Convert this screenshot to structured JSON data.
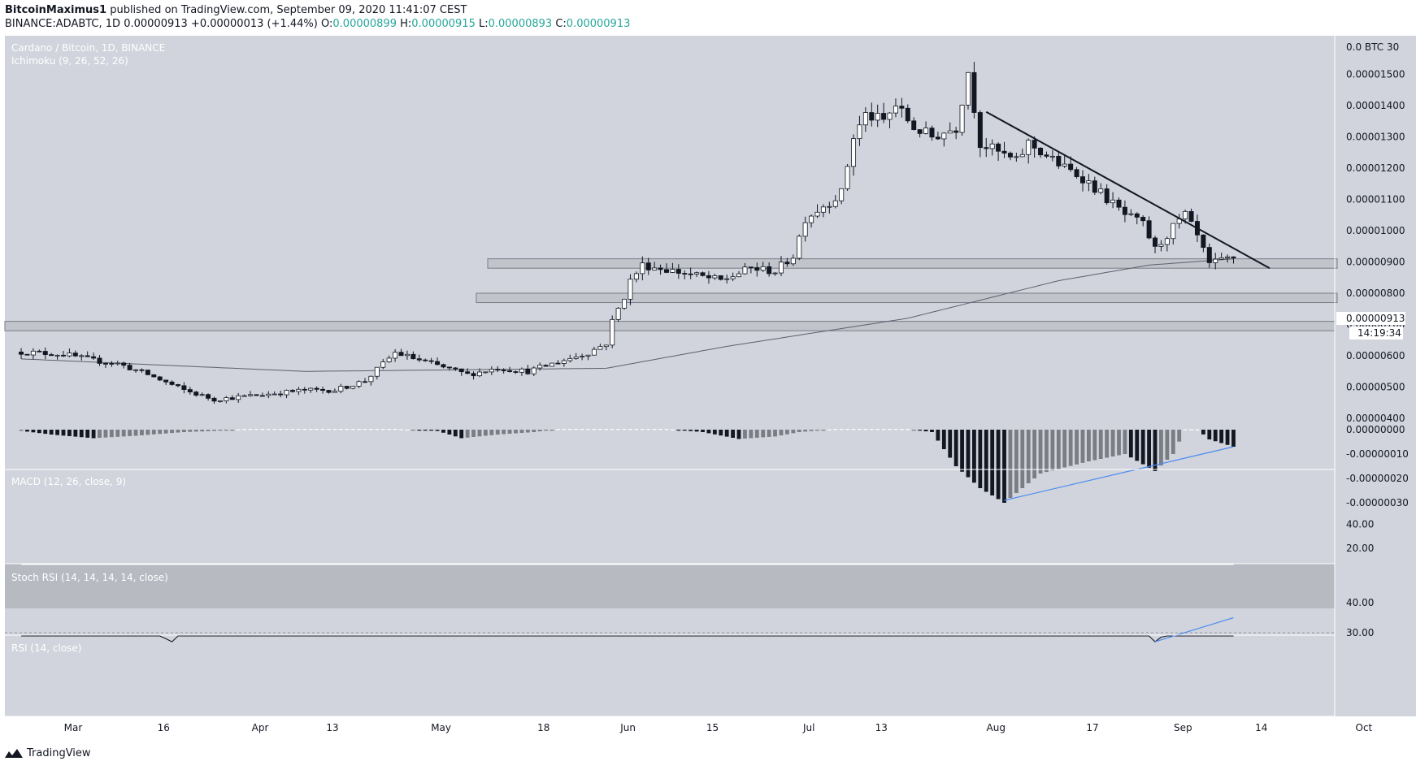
{
  "header": {
    "author": "BitcoinMaximus1",
    "published_text": "published on TradingView.com, September 09, 2020 11:41:07 CEST",
    "symbol": "BINANCE:ADABTC, 1D",
    "last": "0.00000913",
    "change": "+0.00000013 (+1.44%)",
    "o_label": "O:",
    "o_value": "0.00000899",
    "h_label": "H:",
    "h_value": "0.00000915",
    "l_label": "L:",
    "l_value": "0.00000893",
    "c_label": "C:",
    "c_value": "0.00000913"
  },
  "legend": {
    "title": "Cardano / Bitcoin, 1D, BINANCE",
    "indicator": "Ichimoku (9, 26, 52, 26)",
    "macd": "MACD (12, 26, close, 9)",
    "stoch": "Stoch RSI (14, 14, 14, 14, close)",
    "rsi": "RSI (14, close)"
  },
  "footer": {
    "brand": "TradingView"
  },
  "chart_data": {
    "type": "candlestick",
    "instrument": "Cardano / Bitcoin, 1D, BINANCE",
    "price_axis": {
      "unit_label": "0.0 BTC 30",
      "ticks": [
        "0.00001500",
        "0.00001400",
        "0.00001300",
        "0.00001200",
        "0.00001100",
        "0.00001000",
        "0.00000900",
        "0.00000800",
        "0.00000700",
        "0.00000600",
        "0.00000500",
        "0.00000400"
      ],
      "tick_values": [
        1.5e-05,
        1.4e-05,
        1.3e-05,
        1.2e-05,
        1.1e-05,
        1e-05,
        9e-06,
        8e-06,
        7e-06,
        6e-06,
        5e-06,
        4e-06
      ],
      "current_price_label": "0.00000913",
      "current_price": 9.13e-06,
      "countdown_label": "14:19:34"
    },
    "time_axis": {
      "labels": [
        "Mar",
        "16",
        "Apr",
        "13",
        "May",
        "18",
        "Jun",
        "15",
        "Jul",
        "13",
        "Aug",
        "17",
        "Sep",
        "14",
        "Oct"
      ],
      "label_days": [
        0,
        15,
        31,
        43,
        61,
        78,
        92,
        106,
        122,
        134,
        153,
        169,
        184,
        197,
        214
      ]
    },
    "price_series": {
      "start": "2020-02-22",
      "days": 201,
      "anchor_values": [
        [
          -7,
          6.12e-06
        ],
        [
          0,
          6.05e-06
        ],
        [
          5,
          5.85e-06
        ],
        [
          9,
          5.75e-06
        ],
        [
          14,
          5.4e-06
        ],
        [
          20,
          4.9e-06
        ],
        [
          25,
          4.6e-06
        ],
        [
          30,
          4.7e-06
        ],
        [
          35,
          4.8e-06
        ],
        [
          40,
          4.9e-06
        ],
        [
          45,
          4.9e-06
        ],
        [
          50,
          5.2e-06
        ],
        [
          55,
          6.1e-06
        ],
        [
          60,
          5.8e-06
        ],
        [
          67,
          5.4e-06
        ],
        [
          72,
          5.6e-06
        ],
        [
          77,
          5.5e-06
        ],
        [
          82,
          5.8e-06
        ],
        [
          87,
          6.1e-06
        ],
        [
          90,
          6.4e-06
        ],
        [
          91,
          7.1e-06
        ],
        [
          93,
          7.9e-06
        ],
        [
          94,
          8.4e-06
        ],
        [
          96,
          8.9e-06
        ],
        [
          99,
          8.8e-06
        ],
        [
          104,
          8.6e-06
        ],
        [
          109,
          8.4e-06
        ],
        [
          114,
          8.8e-06
        ],
        [
          118,
          8.7e-06
        ],
        [
          121,
          9.2e-06
        ],
        [
          123,
          1.04e-05
        ],
        [
          126,
          1.08e-05
        ],
        [
          129,
          1.12e-05
        ],
        [
          131,
          1.3e-05
        ],
        [
          133,
          1.37e-05
        ],
        [
          136,
          1.35e-05
        ],
        [
          138,
          1.4e-05
        ],
        [
          141,
          1.33e-05
        ],
        [
          144,
          1.3e-05
        ],
        [
          148,
          1.33e-05
        ],
        [
          150,
          1.51e-05
        ],
        [
          152,
          1.28e-05
        ],
        [
          155,
          1.25e-05
        ],
        [
          158,
          1.22e-05
        ],
        [
          160,
          1.28e-05
        ],
        [
          163,
          1.24e-05
        ],
        [
          166,
          1.2e-05
        ],
        [
          169,
          1.17e-05
        ],
        [
          172,
          1.12e-05
        ],
        [
          176,
          1.05e-05
        ],
        [
          179,
          1.02e-05
        ],
        [
          181,
          9.4e-06
        ],
        [
          184,
          1.01e-05
        ],
        [
          186,
          1.05e-05
        ],
        [
          188,
          9.8e-06
        ],
        [
          190,
          8.9e-06
        ],
        [
          193,
          9.1e-06
        ],
        [
          194,
          9.13e-06
        ]
      ]
    },
    "ichimoku_baseline_anchors": [
      [
        -7,
        5.9e-06
      ],
      [
        40,
        5.5e-06
      ],
      [
        90,
        5.6e-06
      ],
      [
        110,
        6.3e-06
      ],
      [
        140,
        7.2e-06
      ],
      [
        165,
        8.4e-06
      ],
      [
        180,
        8.9e-06
      ],
      [
        194,
        9.1e-06
      ]
    ],
    "horizontal_zones": [
      {
        "from": 8.8e-06,
        "to": 9.1e-06
      },
      {
        "from": 7.7e-06,
        "to": 8e-06
      },
      {
        "from": 6.8e-06,
        "to": 7.1e-06
      }
    ],
    "trendline": {
      "from": [
        153,
        1.38e-05
      ],
      "to": [
        200,
        8.8e-06
      ]
    },
    "macd": {
      "ticks": [
        "0.00000000",
        "-0.00000010",
        "-0.00000020",
        "-0.00000030"
      ],
      "tick_values": [
        0,
        -1e-07,
        -2e-07,
        -3e-07
      ],
      "divergence": {
        "from": [
          156,
          -2.9e-07
        ],
        "to": [
          194,
          -7e-08
        ]
      }
    },
    "stoch_rsi": {
      "ticks": [
        "40.00",
        "20.00"
      ],
      "tick_values": [
        40,
        20
      ],
      "band": [
        20,
        80
      ]
    },
    "rsi": {
      "ticks": [
        "40.00",
        "30.00"
      ],
      "tick_values": [
        40,
        30
      ],
      "divergence": {
        "from": [
          181,
          27
        ],
        "to": [
          194,
          35
        ]
      }
    },
    "colors": {
      "bg_main": "#d1d4dc",
      "bull_body": "#ffffff",
      "bear_body": "#131722",
      "line": "#131722",
      "divergence": "#4a8cf0",
      "ichimoku": "#5d606b"
    }
  }
}
